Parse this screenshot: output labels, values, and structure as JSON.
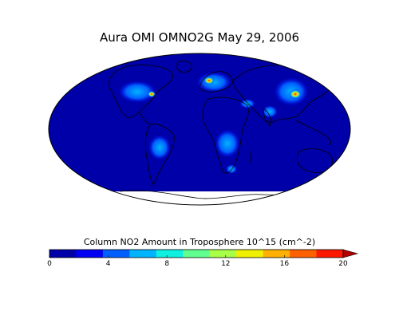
{
  "title": "Aura OMI OMNO2G May 29, 2006",
  "colorbar": {
    "label": "Column NO2 Amount in Troposphere 10^15 (cm^-2)",
    "ticks": [
      "0",
      "4",
      "8",
      "12",
      "16",
      "20"
    ],
    "tick_values": [
      0,
      4,
      8,
      12,
      16,
      20
    ],
    "range": [
      0,
      20
    ],
    "extend": "max",
    "colors": [
      "#0000a8",
      "#0000f2",
      "#0060ff",
      "#00b4ff",
      "#10f0e0",
      "#60ff90",
      "#a8ff48",
      "#f0f000",
      "#ffb000",
      "#ff6000",
      "#ff1800",
      "#b00000"
    ]
  },
  "map": {
    "projection": "mollweide",
    "background_color": "#0000a8",
    "coastline_color": "#000000",
    "missing_data_color": "#ffffff"
  }
}
